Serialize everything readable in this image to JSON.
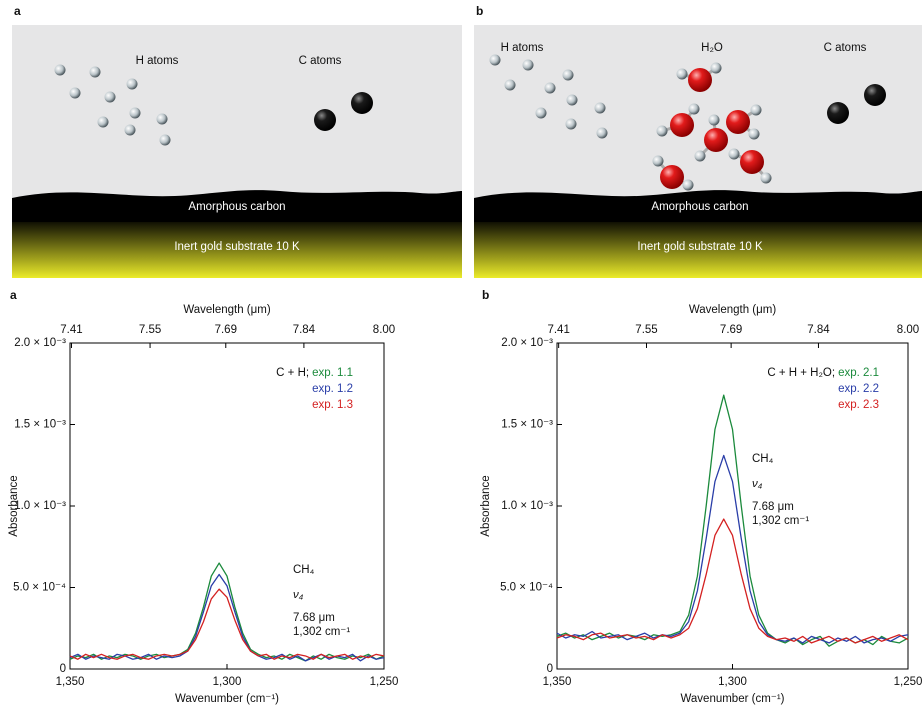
{
  "diagrams": [
    {
      "panel_label": "a",
      "labels": [
        "H atoms",
        "C atoms"
      ],
      "layer_labels": [
        "Amorphous carbon",
        "Inert gold substrate 10 K"
      ]
    },
    {
      "panel_label": "b",
      "labels": [
        "H atoms",
        "H₂O",
        "C atoms"
      ],
      "layer_labels": [
        "Amorphous carbon",
        "Inert gold substrate 10 K"
      ]
    }
  ],
  "chart_data": [
    {
      "type": "line",
      "panel_label": "a",
      "xlabel": "Wavenumber (cm⁻¹)",
      "x2label": "Wavelength (μm)",
      "ylabel": "Absorbance",
      "x": [
        1350,
        1347.5,
        1345,
        1342.5,
        1340,
        1337.5,
        1335,
        1332.5,
        1330,
        1327.5,
        1325,
        1322.5,
        1320,
        1317.5,
        1315,
        1312.5,
        1310,
        1307.5,
        1305,
        1302.5,
        1300,
        1297.5,
        1295,
        1292.5,
        1290,
        1287.5,
        1285,
        1282.5,
        1280,
        1277.5,
        1275,
        1272.5,
        1270,
        1267.5,
        1265,
        1262.5,
        1260,
        1257.5,
        1255,
        1252.5,
        1250
      ],
      "xlim": [
        1350,
        1250
      ],
      "xticks": [
        {
          "value": 1350,
          "label": "1,350"
        },
        {
          "value": 1300,
          "label": "1,300"
        },
        {
          "value": 1250,
          "label": "1,250"
        }
      ],
      "x2ticks": [
        7.41,
        7.55,
        7.69,
        7.84,
        {
          "value": 8,
          "label": "8.00"
        }
      ],
      "ylim": [
        0,
        0.002
      ],
      "yticks": [
        0,
        {
          "value": 0.0005,
          "label": "5.0 × 10⁻⁴"
        },
        {
          "value": 0.001,
          "label": "1.0 × 10⁻³"
        },
        {
          "value": 0.0015,
          "label": "1.5 × 10⁻³"
        },
        {
          "value": 0.002,
          "label": "2.0 × 10⁻³"
        }
      ],
      "legend_title": "C + H;",
      "annotations": [
        "CH₄",
        "ν₄",
        "7.68 μm",
        "1,302 cm⁻¹"
      ],
      "series": [
        {
          "name": "exp. 1.1",
          "color": "#1b8a3c",
          "values": [
            6e-05,
            8e-05,
            7e-05,
            9e-05,
            6e-05,
            8e-05,
            7e-05,
            9e-05,
            8e-05,
            6e-05,
            8e-05,
            9e-05,
            7e-05,
            8e-05,
            9e-05,
            0.00012,
            0.00022,
            0.00038,
            0.00057,
            0.00065,
            0.00057,
            0.00038,
            0.00022,
            0.00012,
            9e-05,
            7e-05,
            8e-05,
            6e-05,
            9e-05,
            7e-05,
            5e-05,
            8e-05,
            6e-05,
            9e-05,
            7e-05,
            6e-05,
            8e-05,
            7e-05,
            9e-05,
            6e-05,
            8e-05
          ]
        },
        {
          "name": "exp. 1.2",
          "color": "#2a3ea8",
          "values": [
            7e-05,
            9e-05,
            6e-05,
            8e-05,
            7e-05,
            6e-05,
            9e-05,
            8e-05,
            6e-05,
            7e-05,
            9e-05,
            6e-05,
            8e-05,
            7e-05,
            8e-05,
            0.00011,
            0.0002,
            0.00035,
            0.00051,
            0.00058,
            0.00051,
            0.00035,
            0.0002,
            0.00011,
            8e-05,
            6e-05,
            7e-05,
            9e-05,
            6e-05,
            8e-05,
            5e-05,
            7e-05,
            9e-05,
            6e-05,
            8e-05,
            7e-05,
            9e-05,
            5e-05,
            8e-05,
            6e-05,
            7e-05
          ]
        },
        {
          "name": "exp. 1.3",
          "color": "#d42121",
          "values": [
            8e-05,
            6e-05,
            9e-05,
            7e-05,
            9e-05,
            7e-05,
            6e-05,
            8e-05,
            9e-05,
            7e-05,
            6e-05,
            8e-05,
            9e-05,
            8e-05,
            9e-05,
            0.00011,
            0.00018,
            0.00029,
            0.00043,
            0.00049,
            0.00044,
            0.0003,
            0.00018,
            0.00011,
            8e-05,
            9e-05,
            6e-05,
            8e-05,
            7e-05,
            9e-05,
            8e-05,
            6e-05,
            9e-05,
            7e-05,
            8e-05,
            9e-05,
            6e-05,
            8e-05,
            7e-05,
            9e-05,
            8e-05
          ]
        }
      ]
    },
    {
      "type": "line",
      "panel_label": "b",
      "xlabel": "Wavenumber (cm⁻¹)",
      "x2label": "Wavelength (μm)",
      "ylabel": "Absorbance",
      "x": [
        1350,
        1347.5,
        1345,
        1342.5,
        1340,
        1337.5,
        1335,
        1332.5,
        1330,
        1327.5,
        1325,
        1322.5,
        1320,
        1317.5,
        1315,
        1312.5,
        1310,
        1307.5,
        1305,
        1302.5,
        1300,
        1297.5,
        1295,
        1292.5,
        1290,
        1287.5,
        1285,
        1282.5,
        1280,
        1277.5,
        1275,
        1272.5,
        1270,
        1267.5,
        1265,
        1262.5,
        1260,
        1257.5,
        1255,
        1252.5,
        1250
      ],
      "xlim": [
        1350,
        1250
      ],
      "xticks": [
        {
          "value": 1350,
          "label": "1,350"
        },
        {
          "value": 1300,
          "label": "1,300"
        },
        {
          "value": 1250,
          "label": "1,250"
        }
      ],
      "x2ticks": [
        7.41,
        7.55,
        7.69,
        7.84,
        {
          "value": 8,
          "label": "8.00"
        }
      ],
      "ylim": [
        0,
        0.002
      ],
      "yticks": [
        0,
        {
          "value": 0.0005,
          "label": "5.0 × 10⁻⁴"
        },
        {
          "value": 0.001,
          "label": "1.0 × 10⁻³"
        },
        {
          "value": 0.0015,
          "label": "1.5 × 10⁻³"
        },
        {
          "value": 0.002,
          "label": "2.0 × 10⁻³"
        }
      ],
      "legend_title": "C + H + H₂O;",
      "annotations": [
        "CH₄",
        "ν₄",
        "7.68 μm",
        "1,302 cm⁻¹"
      ],
      "series": [
        {
          "name": "exp. 2.1",
          "color": "#1b8a3c",
          "values": [
            0.0002,
            0.00022,
            0.00019,
            0.00021,
            0.00018,
            0.0002,
            0.00022,
            0.00019,
            0.00021,
            0.0002,
            0.00018,
            0.00021,
            0.0002,
            0.00021,
            0.00023,
            0.00033,
            0.00057,
            0.001,
            0.00147,
            0.00168,
            0.00147,
            0.001,
            0.00057,
            0.00033,
            0.00022,
            0.00018,
            0.00016,
            0.00019,
            0.00015,
            0.00018,
            0.0002,
            0.00014,
            0.00017,
            0.00019,
            0.00016,
            0.00018,
            0.00015,
            0.0002,
            0.00017,
            0.00016,
            0.00019
          ]
        },
        {
          "name": "exp. 2.2",
          "color": "#2a3ea8",
          "values": [
            0.00022,
            0.00019,
            0.00021,
            0.0002,
            0.00023,
            0.00019,
            0.0002,
            0.00021,
            0.00018,
            0.0002,
            0.00022,
            0.00019,
            0.00021,
            0.0002,
            0.00022,
            0.00029,
            0.00048,
            0.0008,
            0.00115,
            0.00131,
            0.00115,
            0.0008,
            0.00048,
            0.00029,
            0.00021,
            0.00018,
            0.00017,
            0.00019,
            0.00016,
            0.0002,
            0.00018,
            0.00016,
            0.00019,
            0.00017,
            0.0002,
            0.00016,
            0.00018,
            0.00019,
            0.00017,
            0.0002,
            0.00021
          ]
        },
        {
          "name": "exp. 2.3",
          "color": "#d42121",
          "values": [
            0.00019,
            0.00021,
            0.0002,
            0.00018,
            0.00021,
            0.00022,
            0.00019,
            0.0002,
            0.00021,
            0.00019,
            0.0002,
            0.00018,
            0.00021,
            0.00019,
            0.00021,
            0.00025,
            0.00037,
            0.00058,
            0.00082,
            0.00092,
            0.00082,
            0.00058,
            0.00037,
            0.00025,
            0.0002,
            0.00018,
            0.00019,
            0.00017,
            0.0002,
            0.00016,
            0.00018,
            0.0002,
            0.00017,
            0.00019,
            0.00016,
            0.00018,
            0.0002,
            0.00017,
            0.00019,
            0.00021,
            0.00018
          ]
        }
      ]
    }
  ]
}
